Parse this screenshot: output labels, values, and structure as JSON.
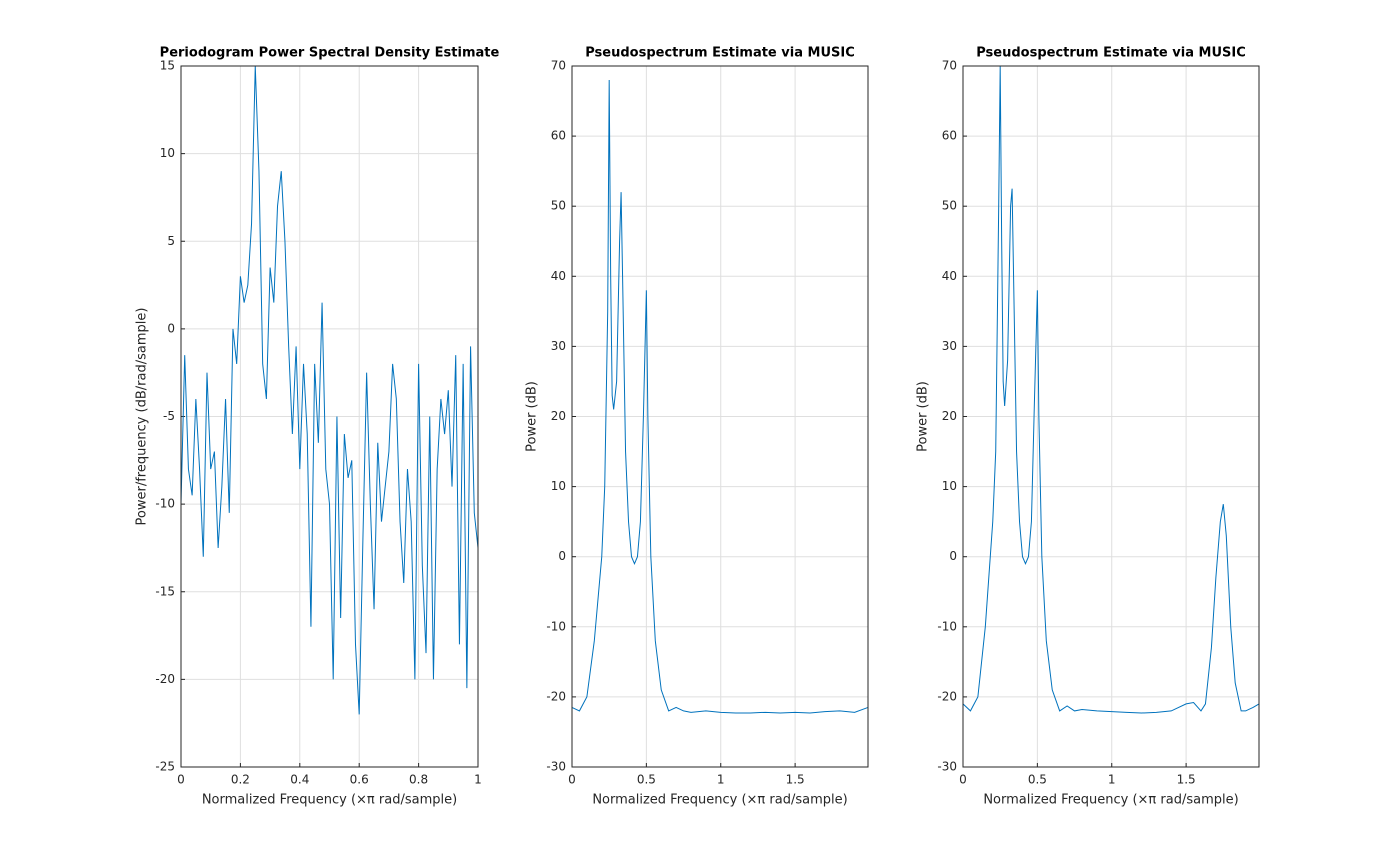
{
  "chart_data": [
    {
      "type": "line",
      "title": "Periodogram Power Spectral Density Estimate",
      "xlabel": "Normalized Frequency  (×π rad/sample)",
      "ylabel": "Power/frequency (dB/rad/sample)",
      "x": [
        0,
        0.0125,
        0.025,
        0.0375,
        0.05,
        0.0625,
        0.075,
        0.0875,
        0.1,
        0.1125,
        0.125,
        0.1375,
        0.15,
        0.1625,
        0.175,
        0.1875,
        0.2,
        0.2125,
        0.225,
        0.2375,
        0.25,
        0.2625,
        0.275,
        0.2875,
        0.3,
        0.3125,
        0.325,
        0.3375,
        0.35,
        0.3625,
        0.375,
        0.3875,
        0.4,
        0.4125,
        0.425,
        0.4375,
        0.45,
        0.4625,
        0.475,
        0.4875,
        0.5,
        0.5125,
        0.525,
        0.5375,
        0.55,
        0.5625,
        0.575,
        0.5875,
        0.6,
        0.6125,
        0.625,
        0.6375,
        0.65,
        0.6625,
        0.675,
        0.6875,
        0.7,
        0.7125,
        0.725,
        0.7375,
        0.75,
        0.7625,
        0.775,
        0.7875,
        0.8,
        0.8125,
        0.825,
        0.8375,
        0.85,
        0.8625,
        0.875,
        0.8875,
        0.9,
        0.9125,
        0.925,
        0.9375,
        0.95,
        0.9625,
        0.975,
        0.9875,
        1.0
      ],
      "values": [
        -10,
        -1.5,
        -8,
        -9.5,
        -4,
        -8,
        -13,
        -2.5,
        -8,
        -7,
        -12.5,
        -9,
        -4,
        -10.5,
        0,
        -2,
        3,
        1.5,
        2.5,
        6,
        15,
        9,
        -2,
        -4,
        3.5,
        1.5,
        7,
        9,
        5,
        -1,
        -6,
        -1,
        -8,
        -2,
        -6,
        -17,
        -2,
        -6.5,
        1.5,
        -8,
        -10,
        -20,
        -5,
        -16.5,
        -6,
        -8.5,
        -7.5,
        -18,
        -22,
        -12,
        -2.5,
        -10,
        -16,
        -6.5,
        -11,
        -9,
        -7,
        -2,
        -4,
        -11,
        -14.5,
        -8,
        -11,
        -20,
        -2,
        -13.5,
        -18.5,
        -5,
        -20,
        -8,
        -4,
        -6,
        -3.5,
        -9,
        -1.5,
        -18,
        -2,
        -20.5,
        -1,
        -10.5,
        -12.5
      ],
      "color": "#0072bd",
      "xlim": [
        0,
        1
      ],
      "ylim": [
        -25,
        15
      ],
      "xticks": [
        0,
        0.2,
        0.4,
        0.6,
        0.8,
        1
      ],
      "yticks": [
        -25,
        -20,
        -15,
        -10,
        -5,
        0,
        5,
        10,
        15
      ],
      "grid": true
    },
    {
      "type": "line",
      "title": "Pseudospectrum Estimate via MUSIC",
      "xlabel": "Normalized Frequency  (×π rad/sample)",
      "ylabel": "Power (dB)",
      "x": [
        0,
        0.05,
        0.1,
        0.15,
        0.2,
        0.22,
        0.24,
        0.25,
        0.26,
        0.27,
        0.28,
        0.3,
        0.32,
        0.33,
        0.34,
        0.36,
        0.38,
        0.4,
        0.42,
        0.44,
        0.46,
        0.48,
        0.5,
        0.51,
        0.53,
        0.56,
        0.6,
        0.65,
        0.7,
        0.75,
        0.8,
        0.9,
        1.0,
        1.1,
        1.2,
        1.3,
        1.4,
        1.5,
        1.6,
        1.7,
        1.8,
        1.9,
        1.99
      ],
      "values": [
        -21.5,
        -22,
        -20,
        -12,
        0,
        10,
        35,
        68,
        40,
        23,
        21,
        25,
        45,
        52,
        40,
        15,
        5,
        0,
        -1,
        0,
        5,
        20,
        38,
        20,
        0,
        -12,
        -19,
        -22,
        -21.5,
        -22,
        -22.2,
        -22,
        -22.2,
        -22.3,
        -22.3,
        -22.2,
        -22.3,
        -22.2,
        -22.3,
        -22.1,
        -22,
        -22.2,
        -21.5
      ],
      "color": "#0072bd",
      "xlim": [
        0,
        1.99
      ],
      "ylim": [
        -30,
        70
      ],
      "xticks": [
        0,
        0.5,
        1,
        1.5
      ],
      "yticks": [
        -30,
        -20,
        -10,
        0,
        10,
        20,
        30,
        40,
        50,
        60,
        70
      ],
      "grid": true
    },
    {
      "type": "line",
      "title": "Pseudospectrum Estimate via MUSIC",
      "xlabel": "Normalized Frequency  (×π rad/sample)",
      "ylabel": "Power (dB)",
      "x": [
        0,
        0.05,
        0.1,
        0.15,
        0.2,
        0.22,
        0.24,
        0.25,
        0.26,
        0.27,
        0.28,
        0.3,
        0.32,
        0.33,
        0.34,
        0.36,
        0.38,
        0.4,
        0.42,
        0.44,
        0.46,
        0.48,
        0.5,
        0.51,
        0.53,
        0.56,
        0.6,
        0.65,
        0.7,
        0.75,
        0.8,
        0.9,
        1.0,
        1.1,
        1.2,
        1.3,
        1.4,
        1.5,
        1.55,
        1.6,
        1.63,
        1.67,
        1.7,
        1.73,
        1.75,
        1.77,
        1.8,
        1.83,
        1.87,
        1.9,
        1.95,
        1.99
      ],
      "values": [
        -21,
        -22,
        -20,
        -10,
        5,
        15,
        50,
        70,
        45,
        25,
        21.5,
        28,
        50,
        52.5,
        40,
        15,
        5,
        0,
        -1,
        0,
        5,
        22,
        38,
        20,
        0,
        -12,
        -19,
        -22,
        -21.3,
        -22,
        -21.8,
        -22,
        -22.1,
        -22.2,
        -22.3,
        -22.2,
        -22,
        -21,
        -20.8,
        -22,
        -21,
        -13,
        -3,
        5,
        7.5,
        3,
        -10,
        -18,
        -22,
        -22,
        -21.5,
        -21
      ],
      "color": "#0072bd",
      "xlim": [
        0,
        1.99
      ],
      "ylim": [
        -30,
        70
      ],
      "xticks": [
        0,
        0.5,
        1,
        1.5
      ],
      "yticks": [
        -30,
        -20,
        -10,
        0,
        10,
        20,
        30,
        40,
        50,
        60,
        70
      ],
      "grid": true
    }
  ]
}
